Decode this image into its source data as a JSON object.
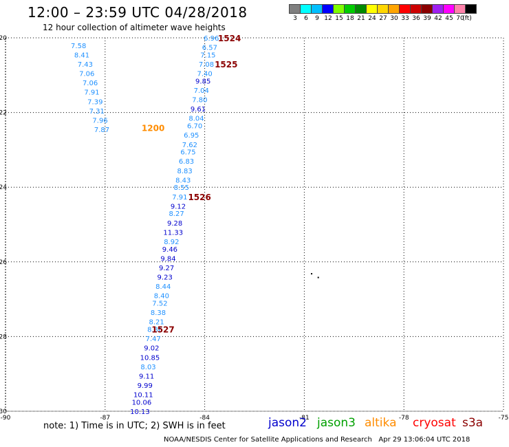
{
  "header": {
    "title": "12:00 – 23:59 UTC 04/28/2018",
    "subtitle": "12 hour collection of altimeter wave heights"
  },
  "legend": {
    "unit": "(ft)",
    "entries": [
      {
        "label": "3",
        "color": "#808080"
      },
      {
        "label": "6",
        "color": "#00ffff"
      },
      {
        "label": "9",
        "color": "#00bfff"
      },
      {
        "label": "12",
        "color": "#0000ff"
      },
      {
        "label": "15",
        "color": "#7fff00"
      },
      {
        "label": "18",
        "color": "#00cd00"
      },
      {
        "label": "21",
        "color": "#008b00"
      },
      {
        "label": "24",
        "color": "#ffff00"
      },
      {
        "label": "27",
        "color": "#ffd700"
      },
      {
        "label": "30",
        "color": "#ffa500"
      },
      {
        "label": "33",
        "color": "#ff0000"
      },
      {
        "label": "36",
        "color": "#cd0000"
      },
      {
        "label": "39",
        "color": "#8b0000"
      },
      {
        "label": "42",
        "color": "#a020f0"
      },
      {
        "label": "45",
        "color": "#ff00ff"
      },
      {
        "label": "70",
        "color": "#ff82ab"
      },
      {
        "label": "",
        "color": "#000000"
      }
    ]
  },
  "map": {
    "lon_range": [
      -90,
      -75
    ],
    "lat_range": [
      -30,
      -20
    ],
    "lon_ticks": [
      "-90",
      "-87",
      "-84",
      "-81",
      "-78",
      "-75"
    ],
    "lat_ticks": [
      "-20",
      "-22",
      "-24",
      "-26",
      "-28",
      "-30"
    ],
    "grid": "dotted",
    "island_marks": [
      {
        "lon": -80.8,
        "lat": -26.3
      },
      {
        "lon": -80.6,
        "lat": -26.4
      }
    ],
    "colors": {
      "lightblue": "#1e90ff",
      "blue": "#0000cd",
      "time": "#8b0000",
      "time_orange": "#ff8c00"
    },
    "track_labels": [
      {
        "text": "1524",
        "lon": -83.6,
        "lat": -20.0,
        "color": "time"
      },
      {
        "text": "1525",
        "lon": -83.7,
        "lat": -20.7,
        "color": "time"
      },
      {
        "text": "1200",
        "lon": -85.9,
        "lat": -22.4,
        "color": "time_orange"
      },
      {
        "text": "1526",
        "lon": -84.5,
        "lat": -24.25,
        "color": "time"
      },
      {
        "text": "1527",
        "lon": -85.6,
        "lat": -27.8,
        "color": "time"
      }
    ],
    "west_track": [
      {
        "v": "7.58",
        "lon": -87.8,
        "lat": -20.2,
        "c": "lightblue"
      },
      {
        "v": "8.41",
        "lon": -87.7,
        "lat": -20.45,
        "c": "lightblue"
      },
      {
        "v": "7.43",
        "lon": -87.6,
        "lat": -20.7,
        "c": "lightblue"
      },
      {
        "v": "7.06",
        "lon": -87.55,
        "lat": -20.95,
        "c": "lightblue"
      },
      {
        "v": "7.06",
        "lon": -87.45,
        "lat": -21.2,
        "c": "lightblue"
      },
      {
        "v": "7.91",
        "lon": -87.4,
        "lat": -21.45,
        "c": "lightblue"
      },
      {
        "v": "7.39",
        "lon": -87.3,
        "lat": -21.7,
        "c": "lightblue"
      },
      {
        "v": "7.31",
        "lon": -87.25,
        "lat": -21.95,
        "c": "lightblue"
      },
      {
        "v": "7.96",
        "lon": -87.15,
        "lat": -22.2,
        "c": "lightblue"
      },
      {
        "v": "7.87",
        "lon": -87.1,
        "lat": -22.45,
        "c": "lightblue"
      }
    ],
    "main_track": [
      {
        "v": "6.96",
        "lon": -83.8,
        "lat": -20.0,
        "c": "lightblue"
      },
      {
        "v": "6.57",
        "lon": -83.85,
        "lat": -20.25,
        "c": "lightblue"
      },
      {
        "v": "7.15",
        "lon": -83.9,
        "lat": -20.45,
        "c": "lightblue"
      },
      {
        "v": "7.08",
        "lon": -83.95,
        "lat": -20.7,
        "c": "lightblue"
      },
      {
        "v": "7.40",
        "lon": -84.0,
        "lat": -20.95,
        "c": "lightblue"
      },
      {
        "v": "9.85",
        "lon": -84.05,
        "lat": -21.15,
        "c": "blue"
      },
      {
        "v": "7.04",
        "lon": -84.1,
        "lat": -21.4,
        "c": "lightblue"
      },
      {
        "v": "7.80",
        "lon": -84.15,
        "lat": -21.65,
        "c": "lightblue"
      },
      {
        "v": "9.61",
        "lon": -84.2,
        "lat": -21.9,
        "c": "blue"
      },
      {
        "v": "8.04",
        "lon": -84.25,
        "lat": -22.15,
        "c": "lightblue"
      },
      {
        "v": "6.70",
        "lon": -84.3,
        "lat": -22.35,
        "c": "lightblue"
      },
      {
        "v": "6.95",
        "lon": -84.4,
        "lat": -22.6,
        "c": "lightblue"
      },
      {
        "v": "7.62",
        "lon": -84.45,
        "lat": -22.85,
        "c": "lightblue"
      },
      {
        "v": "6.75",
        "lon": -84.5,
        "lat": -23.05,
        "c": "lightblue"
      },
      {
        "v": "6.83",
        "lon": -84.55,
        "lat": -23.3,
        "c": "lightblue"
      },
      {
        "v": "8.83",
        "lon": -84.6,
        "lat": -23.55,
        "c": "lightblue"
      },
      {
        "v": "8.43",
        "lon": -84.65,
        "lat": -23.8,
        "c": "lightblue"
      },
      {
        "v": "8.55",
        "lon": -84.7,
        "lat": -24.0,
        "c": "lightblue"
      },
      {
        "v": "7.91",
        "lon": -84.75,
        "lat": -24.25,
        "c": "lightblue"
      },
      {
        "v": "9.12",
        "lon": -84.8,
        "lat": -24.5,
        "c": "blue"
      },
      {
        "v": "8.27",
        "lon": -84.85,
        "lat": -24.7,
        "c": "lightblue"
      },
      {
        "v": "9.28",
        "lon": -84.9,
        "lat": -24.95,
        "c": "blue"
      },
      {
        "v": "11.33",
        "lon": -84.95,
        "lat": -25.2,
        "c": "blue"
      },
      {
        "v": "8.92",
        "lon": -85.0,
        "lat": -25.45,
        "c": "lightblue"
      },
      {
        "v": "9.46",
        "lon": -85.05,
        "lat": -25.65,
        "c": "blue"
      },
      {
        "v": "9.84",
        "lon": -85.1,
        "lat": -25.9,
        "c": "blue"
      },
      {
        "v": "9.27",
        "lon": -85.15,
        "lat": -26.15,
        "c": "blue"
      },
      {
        "v": "9.23",
        "lon": -85.2,
        "lat": -26.4,
        "c": "blue"
      },
      {
        "v": "8.44",
        "lon": -85.25,
        "lat": -26.65,
        "c": "lightblue"
      },
      {
        "v": "8.40",
        "lon": -85.3,
        "lat": -26.9,
        "c": "lightblue"
      },
      {
        "v": "7.52",
        "lon": -85.35,
        "lat": -27.1,
        "c": "lightblue"
      },
      {
        "v": "8.38",
        "lon": -85.4,
        "lat": -27.35,
        "c": "lightblue"
      },
      {
        "v": "8.21",
        "lon": -85.45,
        "lat": -27.6,
        "c": "lightblue"
      },
      {
        "v": "8.36",
        "lon": -85.5,
        "lat": -27.8,
        "c": "lightblue"
      },
      {
        "v": "7.47",
        "lon": -85.55,
        "lat": -28.05,
        "c": "lightblue"
      },
      {
        "v": "9.02",
        "lon": -85.6,
        "lat": -28.3,
        "c": "blue"
      },
      {
        "v": "10.85",
        "lon": -85.65,
        "lat": -28.55,
        "c": "blue"
      },
      {
        "v": "8.03",
        "lon": -85.7,
        "lat": -28.8,
        "c": "lightblue"
      },
      {
        "v": "9.11",
        "lon": -85.75,
        "lat": -29.05,
        "c": "blue"
      },
      {
        "v": "9.99",
        "lon": -85.8,
        "lat": -29.3,
        "c": "blue"
      },
      {
        "v": "10.11",
        "lon": -85.85,
        "lat": -29.55,
        "c": "blue"
      },
      {
        "v": "10.06",
        "lon": -85.9,
        "lat": -29.75,
        "c": "blue"
      },
      {
        "v": "10.13",
        "lon": -85.95,
        "lat": -30.0,
        "c": "blue"
      }
    ]
  },
  "footer": {
    "note": "note: 1) Time is in UTC; 2) SWH is in feet",
    "satellites": [
      {
        "name": "jason2",
        "color": "#0000cd"
      },
      {
        "name": "jason3",
        "color": "#00a000"
      },
      {
        "name": "altika",
        "color": "#ff8c00"
      },
      {
        "name": "cryosat",
        "color": "#ff0000"
      },
      {
        "name": "s3a",
        "color": "#8b0000"
      }
    ],
    "credit": "NOAA/NESDIS Center for Satellite Applications and Research",
    "timestamp": "Apr 29 13:06:04 UTC 2018"
  }
}
